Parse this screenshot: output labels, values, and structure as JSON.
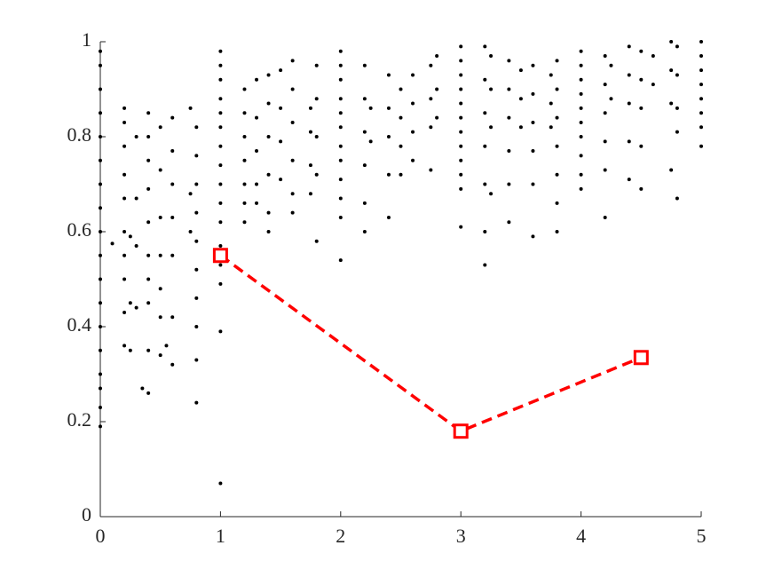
{
  "chart_data": {
    "type": "scatter",
    "xlim": [
      0,
      5
    ],
    "xticks": [
      0,
      1,
      2,
      3,
      4,
      5
    ],
    "ylim": [
      0,
      1
    ],
    "yticks": [
      0,
      0.2,
      0.4,
      0.6,
      0.8,
      1
    ],
    "grid": false,
    "series": [
      {
        "type": "scatter",
        "color": "#000000",
        "x": [
          0,
          0,
          0,
          0,
          0,
          0,
          0,
          0,
          0,
          0,
          0,
          0,
          0,
          0,
          0,
          0,
          0,
          0,
          0.1,
          0.2,
          0.2,
          0.2,
          0.2,
          0.2,
          0.2,
          0.2,
          0.2,
          0.2,
          0.2,
          0.25,
          0.25,
          0.25,
          0.3,
          0.3,
          0.3,
          0.3,
          0.35,
          0.4,
          0.4,
          0.4,
          0.4,
          0.4,
          0.4,
          0.4,
          0.4,
          0.4,
          0.4,
          0.5,
          0.5,
          0.5,
          0.5,
          0.5,
          0.5,
          0.5,
          0.55,
          0.6,
          0.6,
          0.6,
          0.6,
          0.6,
          0.6,
          0.6,
          0.75,
          0.75,
          0.75,
          0.8,
          0.8,
          0.8,
          0.8,
          0.8,
          0.8,
          0.8,
          0.8,
          0.8,
          0.8,
          1,
          1,
          1,
          1,
          1,
          1,
          1,
          1,
          1,
          1,
          1,
          1,
          1,
          1,
          1,
          1,
          1.2,
          1.2,
          1.2,
          1.2,
          1.2,
          1.2,
          1.2,
          1.3,
          1.3,
          1.3,
          1.3,
          1.3,
          1.4,
          1.4,
          1.4,
          1.4,
          1.4,
          1.4,
          1.5,
          1.5,
          1.5,
          1.5,
          1.6,
          1.6,
          1.6,
          1.6,
          1.6,
          1.6,
          1.75,
          1.75,
          1.75,
          1.75,
          1.8,
          1.8,
          1.8,
          1.8,
          1.8,
          2,
          2,
          2,
          2,
          2,
          2,
          2,
          2,
          2,
          2,
          2,
          2,
          2.2,
          2.2,
          2.2,
          2.2,
          2.2,
          2.2,
          2.25,
          2.25,
          2.4,
          2.4,
          2.4,
          2.4,
          2.4,
          2.5,
          2.5,
          2.5,
          2.5,
          2.6,
          2.6,
          2.6,
          2.6,
          2.75,
          2.75,
          2.75,
          2.75,
          2.8,
          2.8,
          2.8,
          3,
          3,
          3,
          3,
          3,
          3,
          3,
          3,
          3,
          3,
          3,
          3,
          3.2,
          3.2,
          3.2,
          3.2,
          3.2,
          3.2,
          3.2,
          3.25,
          3.25,
          3.25,
          3.25,
          3.4,
          3.4,
          3.4,
          3.4,
          3.4,
          3.4,
          3.5,
          3.5,
          3.5,
          3.6,
          3.6,
          3.6,
          3.6,
          3.6,
          3.6,
          3.75,
          3.75,
          3.75,
          3.8,
          3.8,
          3.8,
          3.8,
          3.8,
          3.8,
          3.8,
          4,
          4,
          4,
          4,
          4,
          4,
          4,
          4,
          4,
          4,
          4.2,
          4.2,
          4.2,
          4.2,
          4.2,
          4.2,
          4.25,
          4.25,
          4.4,
          4.4,
          4.4,
          4.4,
          4.4,
          4.5,
          4.5,
          4.5,
          4.5,
          4.5,
          4.6,
          4.6,
          4.75,
          4.75,
          4.75,
          4.75,
          4.8,
          4.8,
          4.8,
          4.8,
          4.8,
          5,
          5,
          5,
          5,
          5,
          5,
          5,
          5
        ],
        "values": [
          0.98,
          0.95,
          0.9,
          0.85,
          0.8,
          0.75,
          0.7,
          0.65,
          0.6,
          0.55,
          0.5,
          0.45,
          0.4,
          0.35,
          0.3,
          0.27,
          0.23,
          0.19,
          0.575,
          0.86,
          0.83,
          0.78,
          0.72,
          0.67,
          0.6,
          0.55,
          0.5,
          0.43,
          0.36,
          0.59,
          0.45,
          0.35,
          0.8,
          0.67,
          0.57,
          0.44,
          0.27,
          0.85,
          0.8,
          0.75,
          0.69,
          0.62,
          0.55,
          0.5,
          0.45,
          0.35,
          0.26,
          0.82,
          0.73,
          0.63,
          0.55,
          0.48,
          0.42,
          0.34,
          0.36,
          0.84,
          0.77,
          0.7,
          0.63,
          0.55,
          0.42,
          0.32,
          0.86,
          0.68,
          0.6,
          0.82,
          0.76,
          0.7,
          0.64,
          0.58,
          0.52,
          0.46,
          0.4,
          0.33,
          0.24,
          0.98,
          0.95,
          0.92,
          0.88,
          0.85,
          0.82,
          0.78,
          0.74,
          0.7,
          0.66,
          0.62,
          0.57,
          0.53,
          0.49,
          0.39,
          0.07,
          0.9,
          0.85,
          0.8,
          0.75,
          0.7,
          0.66,
          0.62,
          0.92,
          0.84,
          0.77,
          0.7,
          0.66,
          0.93,
          0.87,
          0.8,
          0.72,
          0.64,
          0.6,
          0.94,
          0.86,
          0.79,
          0.71,
          0.96,
          0.9,
          0.83,
          0.75,
          0.68,
          0.64,
          0.86,
          0.81,
          0.74,
          0.68,
          0.95,
          0.88,
          0.8,
          0.72,
          0.58,
          0.98,
          0.95,
          0.92,
          0.88,
          0.85,
          0.82,
          0.78,
          0.75,
          0.71,
          0.67,
          0.63,
          0.54,
          0.95,
          0.88,
          0.81,
          0.74,
          0.66,
          0.6,
          0.86,
          0.79,
          0.93,
          0.86,
          0.8,
          0.72,
          0.63,
          0.9,
          0.84,
          0.78,
          0.72,
          0.93,
          0.87,
          0.81,
          0.75,
          0.95,
          0.88,
          0.82,
          0.73,
          0.97,
          0.9,
          0.84,
          0.99,
          0.96,
          0.93,
          0.9,
          0.87,
          0.84,
          0.81,
          0.78,
          0.75,
          0.72,
          0.69,
          0.61,
          0.99,
          0.92,
          0.85,
          0.78,
          0.7,
          0.6,
          0.53,
          0.97,
          0.9,
          0.82,
          0.68,
          0.96,
          0.9,
          0.84,
          0.77,
          0.7,
          0.62,
          0.94,
          0.88,
          0.82,
          0.95,
          0.89,
          0.83,
          0.77,
          0.7,
          0.59,
          0.93,
          0.87,
          0.82,
          0.96,
          0.9,
          0.84,
          0.78,
          0.72,
          0.66,
          0.6,
          0.98,
          0.95,
          0.92,
          0.89,
          0.86,
          0.83,
          0.8,
          0.76,
          0.72,
          0.69,
          0.97,
          0.91,
          0.85,
          0.79,
          0.73,
          0.63,
          0.95,
          0.88,
          0.99,
          0.93,
          0.87,
          0.79,
          0.71,
          0.98,
          0.92,
          0.86,
          0.78,
          0.69,
          0.97,
          0.91,
          1.0,
          0.94,
          0.87,
          0.73,
          0.99,
          0.93,
          0.86,
          0.81,
          0.67,
          1.0,
          0.97,
          0.94,
          0.91,
          0.88,
          0.85,
          0.82,
          0.78
        ]
      },
      {
        "type": "line",
        "color": "#ff0000",
        "x": [
          1,
          3,
          4.5
        ],
        "values": [
          0.55,
          0.18,
          0.335
        ]
      }
    ]
  }
}
